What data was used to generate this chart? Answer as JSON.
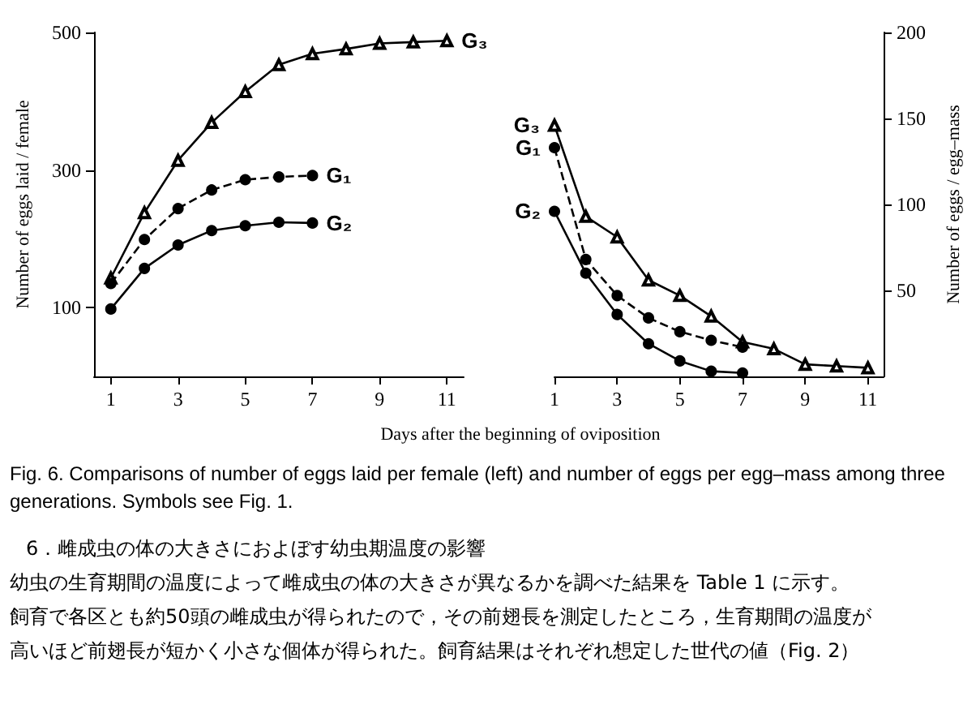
{
  "chart_data": [
    {
      "type": "line",
      "ylabel": "Number of eggs laid / female",
      "xlabel": "Days after the beginning of oviposition",
      "xlim": [
        0.5,
        11.5
      ],
      "xticks": [
        1,
        3,
        5,
        7,
        9,
        11
      ],
      "ylim": [
        0,
        500
      ],
      "yticks": [
        100,
        300,
        500
      ],
      "grid": false,
      "legend": false,
      "series": [
        {
          "name": "G₃",
          "color": "#000000",
          "marker": "triangle",
          "line_style": "solid",
          "x": [
            1,
            2,
            3,
            4,
            5,
            6,
            7,
            8,
            9,
            10,
            11
          ],
          "values": [
            143,
            238,
            314,
            369,
            414,
            453,
            469,
            476,
            484,
            486,
            488
          ]
        },
        {
          "name": "G₁",
          "color": "#000000",
          "marker": "circle",
          "line_style": "dashed",
          "x": [
            1,
            2,
            3,
            4,
            5,
            6,
            7
          ],
          "values": [
            135,
            199,
            244,
            271,
            286,
            290,
            292
          ]
        },
        {
          "name": "G₂",
          "color": "#000000",
          "marker": "circle",
          "line_style": "solid",
          "x": [
            1,
            2,
            3,
            4,
            5,
            6,
            7
          ],
          "values": [
            98,
            157,
            191,
            212,
            219,
            224,
            223
          ]
        }
      ]
    },
    {
      "type": "line",
      "ylabel": "Number of eggs / egg–mass",
      "xlim": [
        1,
        11.5
      ],
      "xticks": [
        1,
        3,
        5,
        7,
        9,
        11
      ],
      "ylim": [
        0,
        200
      ],
      "yticks": [
        50,
        100,
        150,
        200
      ],
      "grid": false,
      "legend": false,
      "annotations": [
        "Fig. 6.  Comparisons of number of eggs laid per female (left) and number of eggs per egg–mass among three generations. Symbols see Fig. 1.",
        "6．雌成虫の体の大きさにおよぼす幼虫期温度の影響",
        "幼虫の生育期間の温度によって雌成虫の体の大きさが異なるかを調べた結果を Table 1 に示す。",
        "飼育で各区とも約50頭の雌成虫が得られたので，その前翅長を測定したところ，生育期間の温度が",
        "高いほど前翅長が短かく小さな個体が得られた。飼育結果はそれぞれ想定した世代の値（Fig. 2）"
      ],
      "series": [
        {
          "name": "G₃",
          "color": "#000000",
          "marker": "triangle",
          "line_style": "solid",
          "x": [
            1,
            2,
            3,
            4,
            5,
            6,
            7,
            8,
            9,
            10,
            11
          ],
          "values": [
            146,
            93,
            81,
            56,
            47,
            35,
            20,
            16,
            7,
            6,
            5
          ]
        },
        {
          "name": "G₁",
          "color": "#000000",
          "marker": "circle",
          "line_style": "dashed",
          "x": [
            1,
            2,
            3,
            4,
            5,
            6,
            7
          ],
          "values": [
            133,
            68,
            47,
            34,
            26,
            21,
            17
          ]
        },
        {
          "name": "G₂",
          "color": "#000000",
          "marker": "circle",
          "line_style": "solid",
          "x": [
            1,
            2,
            3,
            4,
            5,
            6,
            7
          ],
          "values": [
            96,
            60,
            36,
            19,
            9,
            3,
            2
          ]
        }
      ]
    }
  ]
}
